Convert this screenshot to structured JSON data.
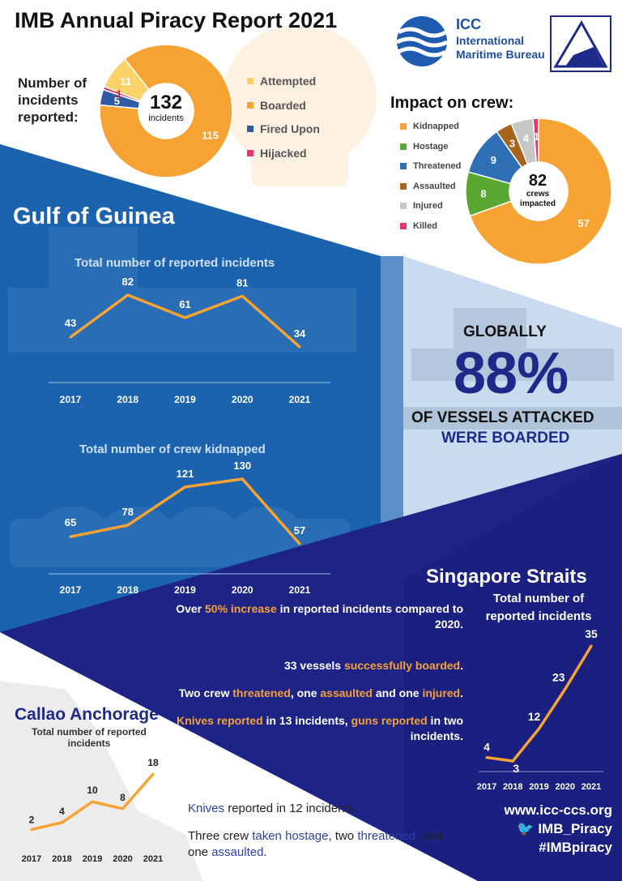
{
  "header": {
    "title": "IMB Annual Piracy Report 2021",
    "icc_short": "ICC",
    "icc_name": "International Maritime Bureau"
  },
  "incidents": {
    "label": "Number of incidents reported:",
    "total": "132",
    "total_sub": "incidents",
    "legend": [
      {
        "label": "Attempted",
        "color": "#f9d36a"
      },
      {
        "label": "Boarded",
        "color": "#f6a333"
      },
      {
        "label": "Fired Upon",
        "color": "#2e5aa8"
      },
      {
        "label": "Hijacked",
        "color": "#e8356f"
      }
    ]
  },
  "crew": {
    "title": "Impact on crew:",
    "total": "82",
    "total_sub1": "crews",
    "total_sub2": "impacted",
    "legend": [
      {
        "label": "Kidnapped",
        "color": "#f6a333"
      },
      {
        "label": "Hostage",
        "color": "#5aa832"
      },
      {
        "label": "Threatened",
        "color": "#2e6fb5"
      },
      {
        "label": "Assaulted",
        "color": "#a8641a"
      },
      {
        "label": "Injured",
        "color": "#c7c7c7"
      },
      {
        "label": "Killed",
        "color": "#e8356f"
      }
    ]
  },
  "gulf": {
    "title": "Gulf of Guinea"
  },
  "globally": {
    "line1": "GLOBALLY",
    "pct": "88%",
    "line2": "OF VESSELS ATTACKED",
    "line3": "WERE BOARDED"
  },
  "singapore": {
    "title": "Singapore Straits",
    "chart_title_1": "Total number of",
    "chart_title_2": "reported incidents",
    "facts": [
      {
        "parts": [
          "Over ",
          "50% increase",
          " in reported incidents compared to 2020."
        ]
      },
      {
        "parts": [
          "33 vessels ",
          "successfully boarded",
          "."
        ]
      },
      {
        "parts": [
          "Two crew ",
          "threatened",
          ", one ",
          "assaulted",
          " and one ",
          "injured",
          "."
        ]
      },
      {
        "parts": [
          "",
          "Knives reported",
          " in 13 incidents, ",
          "guns reported",
          " in two incidents."
        ]
      }
    ]
  },
  "callao": {
    "title": "Callao Anchorage",
    "chart_title_1": "Total number of reported",
    "chart_title_2": "incidents",
    "fact1": [
      "Knives",
      " reported in 12 incidents."
    ],
    "fact2": [
      "Three crew ",
      "taken hostage",
      ", two ",
      "threatened",
      ", and one ",
      "assaulted",
      "."
    ]
  },
  "footer": {
    "website": "www.icc-ccs.org",
    "twitter": "IMB_Piracy",
    "hashtag": "#IMBpiracy"
  },
  "chart_data": [
    {
      "id": "incidents_by_type",
      "type": "pie",
      "categories": [
        "Attempted",
        "Boarded",
        "Fired Upon",
        "Hijacked"
      ],
      "values": [
        11,
        115,
        5,
        1
      ],
      "colors": [
        "#f9d36a",
        "#f6a333",
        "#2e5aa8",
        "#e8356f"
      ]
    },
    {
      "id": "crew_impact",
      "type": "pie",
      "categories": [
        "Kidnapped",
        "Hostage",
        "Threatened",
        "Assaulted",
        "Injured",
        "Killed"
      ],
      "values": [
        57,
        8,
        9,
        3,
        4,
        1
      ],
      "colors": [
        "#f6a333",
        "#5aa832",
        "#2e6fb5",
        "#a8641a",
        "#c7c7c7",
        "#e8356f"
      ]
    },
    {
      "id": "gog_incidents",
      "type": "line",
      "title": "Total number of reported incidents",
      "categories": [
        "2017",
        "2018",
        "2019",
        "2020",
        "2021"
      ],
      "values": [
        43,
        82,
        61,
        81,
        34
      ]
    },
    {
      "id": "gog_kidnapped",
      "type": "line",
      "title": "Total number of crew kidnapped",
      "categories": [
        "2017",
        "2018",
        "2019",
        "2020",
        "2021"
      ],
      "values": [
        65,
        78,
        121,
        130,
        57
      ]
    },
    {
      "id": "singapore",
      "type": "line",
      "categories": [
        "2017",
        "2018",
        "2019",
        "2020",
        "2021"
      ],
      "values": [
        4,
        3,
        12,
        23,
        35
      ]
    },
    {
      "id": "callao",
      "type": "line",
      "categories": [
        "2017",
        "2018",
        "2019",
        "2020",
        "2021"
      ],
      "values": [
        2,
        4,
        10,
        8,
        18
      ]
    }
  ]
}
